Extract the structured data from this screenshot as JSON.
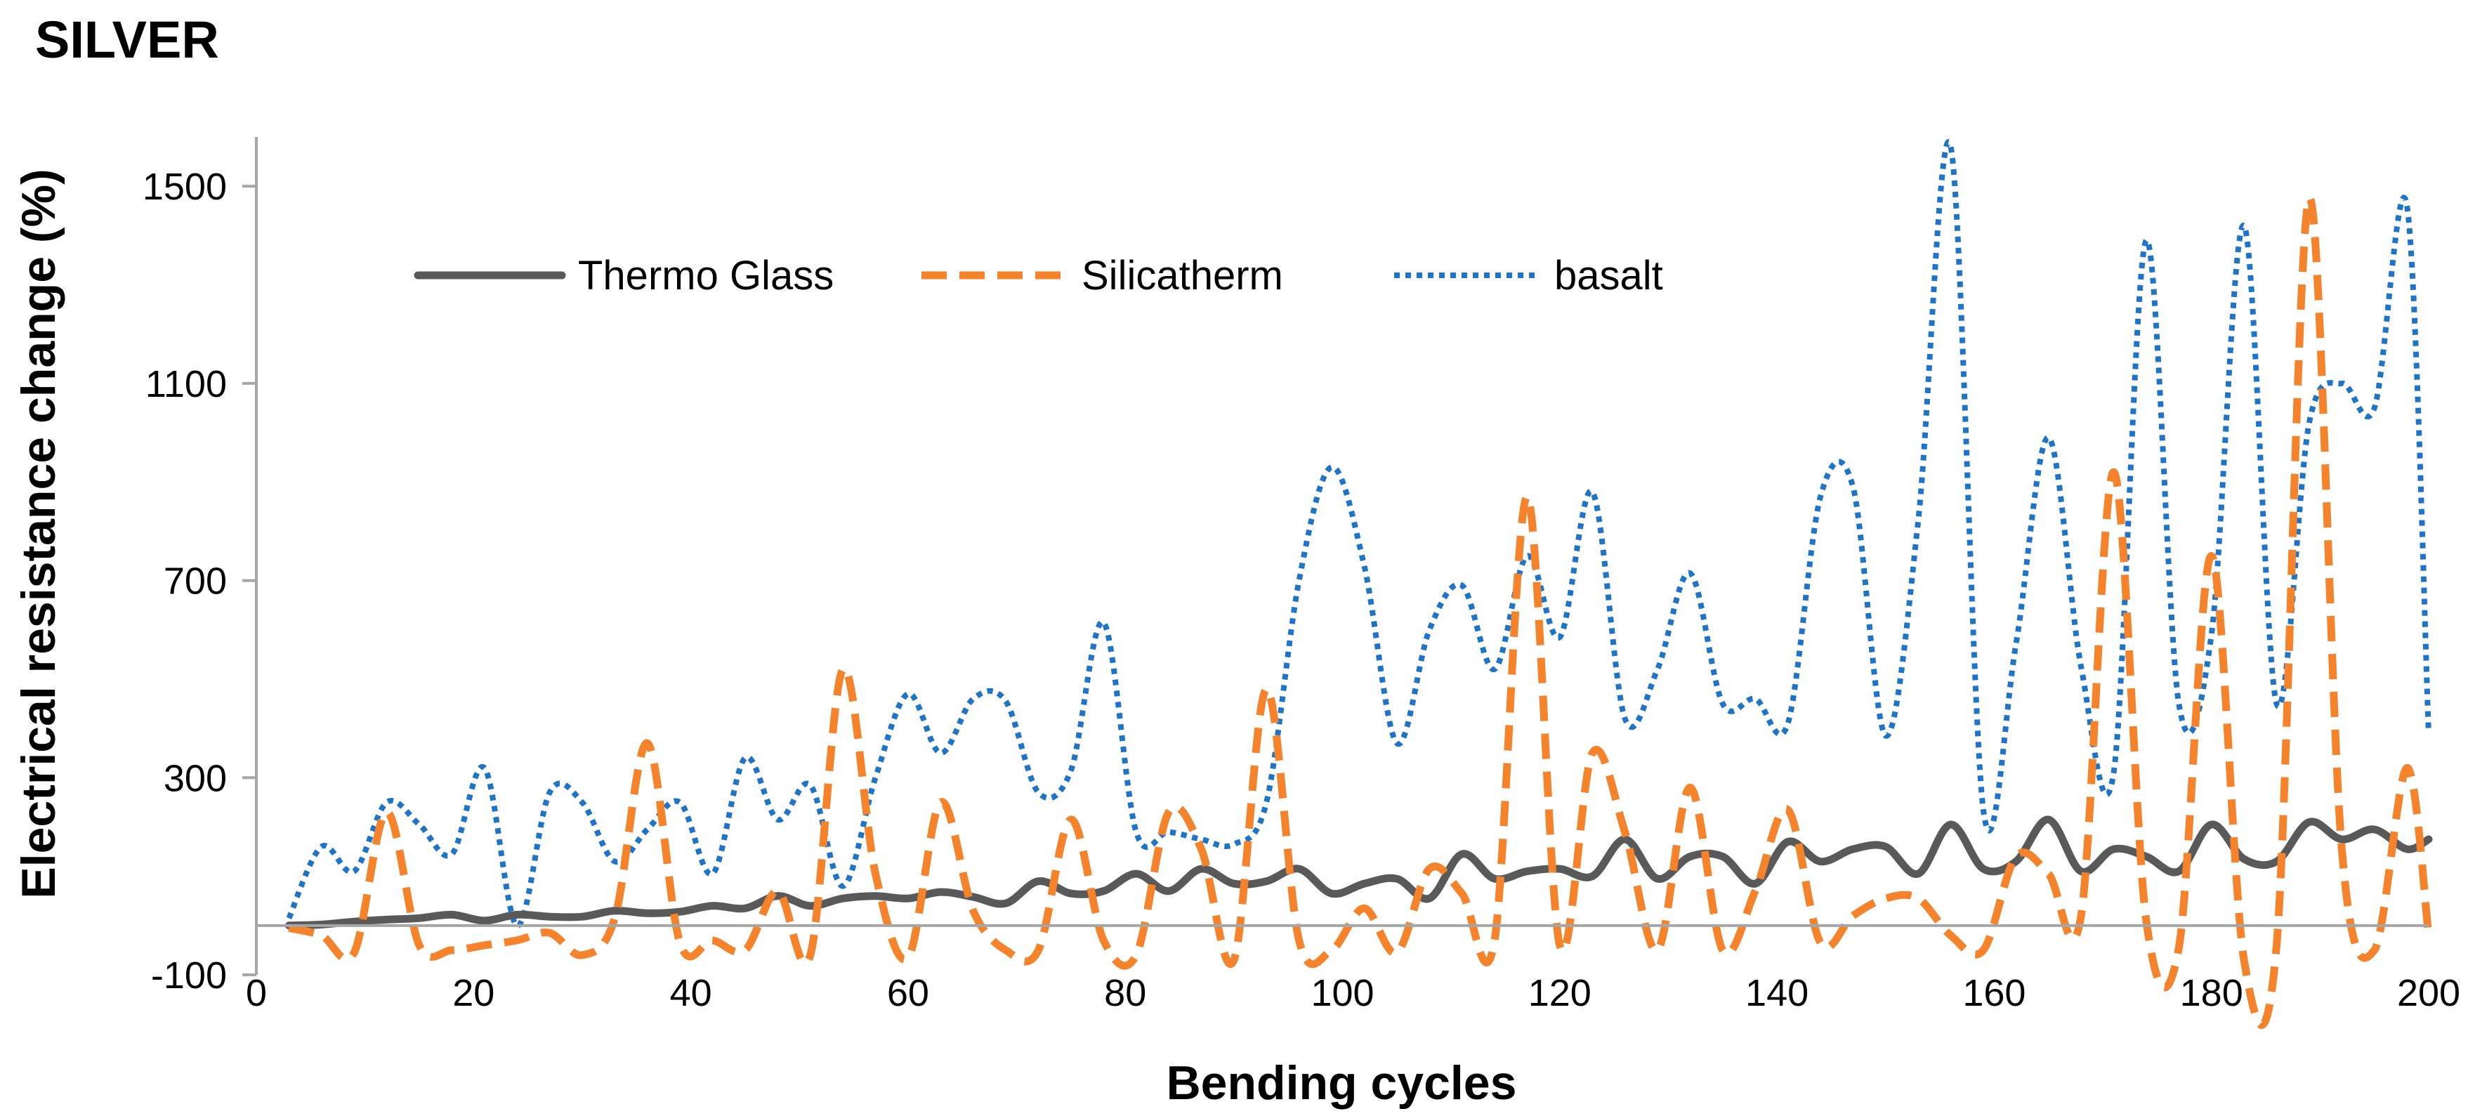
{
  "chart_data": {
    "type": "line",
    "title": "SILVER",
    "xlabel": "Bending cycles",
    "ylabel": "Electrical resistance change  (%)",
    "xlim": [
      0,
      200
    ],
    "ylim": [
      -100,
      1600
    ],
    "xticks": [
      0,
      20,
      40,
      60,
      80,
      100,
      120,
      140,
      160,
      180,
      200
    ],
    "yticks": [
      -100,
      300,
      700,
      1100,
      1500
    ],
    "grid": false,
    "legend_position": "top-left",
    "series": [
      {
        "name": "Thermo Glass",
        "color": "#595959",
        "style": "solid",
        "points": [
          [
            3,
            0
          ],
          [
            6,
            2
          ],
          [
            9,
            8
          ],
          [
            12,
            12
          ],
          [
            15,
            15
          ],
          [
            18,
            22
          ],
          [
            21,
            10
          ],
          [
            24,
            22
          ],
          [
            27,
            18
          ],
          [
            30,
            18
          ],
          [
            33,
            30
          ],
          [
            36,
            25
          ],
          [
            39,
            28
          ],
          [
            42,
            40
          ],
          [
            45,
            35
          ],
          [
            48,
            60
          ],
          [
            51,
            40
          ],
          [
            54,
            55
          ],
          [
            57,
            60
          ],
          [
            60,
            55
          ],
          [
            63,
            68
          ],
          [
            66,
            58
          ],
          [
            69,
            45
          ],
          [
            72,
            90
          ],
          [
            75,
            65
          ],
          [
            78,
            70
          ],
          [
            81,
            105
          ],
          [
            84,
            70
          ],
          [
            87,
            115
          ],
          [
            90,
            85
          ],
          [
            93,
            90
          ],
          [
            96,
            115
          ],
          [
            99,
            65
          ],
          [
            102,
            85
          ],
          [
            105,
            95
          ],
          [
            108,
            55
          ],
          [
            111,
            145
          ],
          [
            114,
            95
          ],
          [
            117,
            110
          ],
          [
            120,
            115
          ],
          [
            123,
            100
          ],
          [
            126,
            175
          ],
          [
            129,
            95
          ],
          [
            132,
            140
          ],
          [
            135,
            140
          ],
          [
            138,
            85
          ],
          [
            141,
            170
          ],
          [
            144,
            130
          ],
          [
            147,
            155
          ],
          [
            150,
            160
          ],
          [
            153,
            105
          ],
          [
            156,
            205
          ],
          [
            159,
            115
          ],
          [
            162,
            130
          ],
          [
            165,
            215
          ],
          [
            168,
            110
          ],
          [
            171,
            155
          ],
          [
            174,
            140
          ],
          [
            177,
            110
          ],
          [
            180,
            205
          ],
          [
            183,
            135
          ],
          [
            186,
            130
          ],
          [
            189,
            210
          ],
          [
            192,
            175
          ],
          [
            195,
            195
          ],
          [
            198,
            155
          ],
          [
            200,
            175
          ]
        ]
      },
      {
        "name": "Silicatherm",
        "color": "#F4832C",
        "style": "dashed",
        "points": [
          [
            3,
            -5
          ],
          [
            6,
            -20
          ],
          [
            9,
            -55
          ],
          [
            12,
            230
          ],
          [
            15,
            -40
          ],
          [
            18,
            -50
          ],
          [
            21,
            -40
          ],
          [
            24,
            -30
          ],
          [
            27,
            -15
          ],
          [
            30,
            -60
          ],
          [
            33,
            15
          ],
          [
            36,
            370
          ],
          [
            39,
            -35
          ],
          [
            42,
            -30
          ],
          [
            45,
            -50
          ],
          [
            48,
            70
          ],
          [
            51,
            -60
          ],
          [
            54,
            520
          ],
          [
            57,
            105
          ],
          [
            60,
            -65
          ],
          [
            63,
            250
          ],
          [
            66,
            30
          ],
          [
            69,
            -50
          ],
          [
            72,
            -50
          ],
          [
            75,
            215
          ],
          [
            78,
            -30
          ],
          [
            81,
            -60
          ],
          [
            84,
            230
          ],
          [
            87,
            155
          ],
          [
            90,
            -70
          ],
          [
            93,
            480
          ],
          [
            96,
            -30
          ],
          [
            99,
            -50
          ],
          [
            102,
            35
          ],
          [
            105,
            -55
          ],
          [
            108,
            115
          ],
          [
            111,
            65
          ],
          [
            114,
            -30
          ],
          [
            117,
            870
          ],
          [
            120,
            -40
          ],
          [
            123,
            350
          ],
          [
            126,
            190
          ],
          [
            129,
            -50
          ],
          [
            132,
            280
          ],
          [
            135,
            -50
          ],
          [
            138,
            70
          ],
          [
            141,
            235
          ],
          [
            144,
            -35
          ],
          [
            147,
            20
          ],
          [
            150,
            55
          ],
          [
            153,
            55
          ],
          [
            156,
            -20
          ],
          [
            159,
            -50
          ],
          [
            162,
            140
          ],
          [
            165,
            105
          ],
          [
            168,
            20
          ],
          [
            171,
            920
          ],
          [
            174,
            10
          ],
          [
            177,
            -45
          ],
          [
            180,
            750
          ],
          [
            183,
            -70
          ],
          [
            186,
            -40
          ],
          [
            189,
            1475
          ],
          [
            192,
            155
          ],
          [
            195,
            -50
          ],
          [
            198,
            320
          ],
          [
            200,
            -20
          ]
        ]
      },
      {
        "name": "basalt",
        "color": "#1F74C7",
        "style": "dotted",
        "points": [
          [
            3,
            15
          ],
          [
            6,
            160
          ],
          [
            9,
            110
          ],
          [
            12,
            250
          ],
          [
            15,
            205
          ],
          [
            18,
            145
          ],
          [
            21,
            320
          ],
          [
            24,
            0
          ],
          [
            27,
            270
          ],
          [
            30,
            250
          ],
          [
            33,
            130
          ],
          [
            36,
            195
          ],
          [
            39,
            250
          ],
          [
            42,
            105
          ],
          [
            45,
            340
          ],
          [
            48,
            215
          ],
          [
            51,
            285
          ],
          [
            54,
            80
          ],
          [
            57,
            300
          ],
          [
            60,
            470
          ],
          [
            63,
            350
          ],
          [
            66,
            460
          ],
          [
            69,
            455
          ],
          [
            72,
            270
          ],
          [
            75,
            315
          ],
          [
            78,
            615
          ],
          [
            81,
            190
          ],
          [
            84,
            190
          ],
          [
            87,
            175
          ],
          [
            90,
            165
          ],
          [
            93,
            250
          ],
          [
            96,
            700
          ],
          [
            99,
            930
          ],
          [
            102,
            730
          ],
          [
            105,
            370
          ],
          [
            108,
            600
          ],
          [
            111,
            690
          ],
          [
            114,
            520
          ],
          [
            117,
            750
          ],
          [
            120,
            585
          ],
          [
            123,
            880
          ],
          [
            126,
            420
          ],
          [
            129,
            520
          ],
          [
            132,
            715
          ],
          [
            135,
            450
          ],
          [
            138,
            460
          ],
          [
            141,
            410
          ],
          [
            144,
            870
          ],
          [
            147,
            890
          ],
          [
            150,
            385
          ],
          [
            153,
            820
          ],
          [
            156,
            1580
          ],
          [
            159,
            235
          ],
          [
            162,
            570
          ],
          [
            165,
            990
          ],
          [
            168,
            525
          ],
          [
            171,
            310
          ],
          [
            174,
            1390
          ],
          [
            177,
            450
          ],
          [
            180,
            590
          ],
          [
            183,
            1420
          ],
          [
            186,
            450
          ],
          [
            189,
            1020
          ],
          [
            192,
            1100
          ],
          [
            195,
            1050
          ],
          [
            198,
            1460
          ],
          [
            200,
            390
          ]
        ]
      }
    ]
  }
}
